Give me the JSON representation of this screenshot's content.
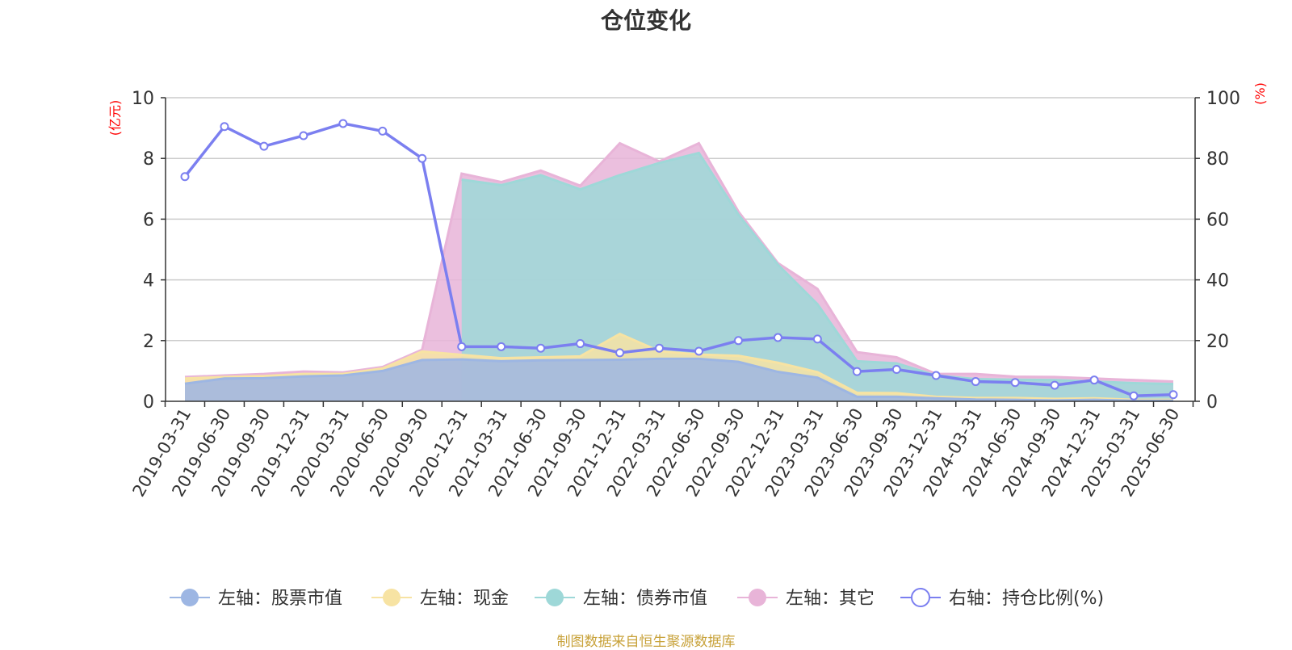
{
  "chart_data": {
    "type": "area",
    "title": "仓位变化",
    "left_axis_label": "(亿元)",
    "right_axis_label": "(%)",
    "left_ylim": [
      0,
      10
    ],
    "right_ylim": [
      0,
      100
    ],
    "left_ticks": [
      0,
      2,
      4,
      6,
      8,
      10
    ],
    "right_ticks": [
      0,
      20,
      40,
      60,
      80,
      100
    ],
    "grid": true,
    "legend_position": "bottom",
    "categories": [
      "2019-03-31",
      "2019-06-30",
      "2019-09-30",
      "2019-12-31",
      "2020-03-31",
      "2020-06-30",
      "2020-09-30",
      "2020-12-31",
      "2021-03-31",
      "2021-06-30",
      "2021-09-30",
      "2021-12-31",
      "2022-03-31",
      "2022-06-30",
      "2022-09-30",
      "2022-12-31",
      "2023-03-31",
      "2023-06-30",
      "2023-09-30",
      "2023-12-31",
      "2024-03-31",
      "2024-06-30",
      "2024-09-30",
      "2024-12-31",
      "2025-03-31",
      "2025-06-30"
    ],
    "stacked_series": [
      {
        "name": "左轴：股票市值",
        "axis": "left",
        "color": "#9db6e3",
        "values": [
          0.58,
          0.75,
          0.76,
          0.82,
          0.85,
          1.0,
          1.36,
          1.38,
          1.32,
          1.35,
          1.36,
          1.37,
          1.4,
          1.4,
          1.3,
          0.97,
          0.78,
          0.15,
          0.15,
          0.1,
          0.06,
          0.05,
          0.03,
          0.05,
          0.02,
          0.02
        ]
      },
      {
        "name": "左轴：现金",
        "axis": "left",
        "color": "#f7e3a3",
        "values": [
          0.17,
          0.05,
          0.07,
          0.08,
          0.05,
          0.08,
          0.28,
          0.15,
          0.1,
          0.1,
          0.12,
          0.85,
          0.25,
          0.14,
          0.2,
          0.3,
          0.18,
          0.13,
          0.12,
          0.05,
          0.05,
          0.06,
          0.05,
          0.05,
          0.03,
          0.03
        ]
      },
      {
        "name": "左轴：债券市值",
        "axis": "left",
        "color": "#9ed8d8",
        "values": [
          0,
          0,
          0,
          0,
          0,
          0,
          0,
          5.77,
          5.7,
          6.0,
          5.5,
          5.23,
          6.2,
          6.64,
          4.65,
          3.23,
          2.24,
          1.04,
          0.98,
          0.7,
          0.62,
          0.6,
          0.62,
          0.55,
          0.55,
          0.52
        ]
      },
      {
        "name": "左轴：其它",
        "axis": "left",
        "color": "#e8b4d8",
        "values": [
          0.05,
          0.05,
          0.07,
          0.08,
          0.05,
          0.05,
          0.06,
          0.2,
          0.1,
          0.15,
          0.12,
          1.05,
          0.05,
          0.32,
          0.1,
          0.05,
          0.5,
          0.3,
          0.2,
          0.05,
          0.17,
          0.1,
          0.1,
          0.1,
          0.1,
          0.08
        ]
      }
    ],
    "line_series": {
      "name": "右轴：持仓比例(%)",
      "axis": "right",
      "color": "#7b7ff0",
      "values": [
        74,
        90.5,
        84,
        87.5,
        91.5,
        89,
        80,
        18,
        18,
        17.5,
        19,
        16,
        17.5,
        16.5,
        20,
        21,
        20.5,
        9.8,
        10.5,
        8.5,
        6.5,
        6.2,
        5.3,
        7,
        1.8,
        2.2
      ]
    }
  },
  "source_note": "制图数据来自恒生聚源数据库"
}
